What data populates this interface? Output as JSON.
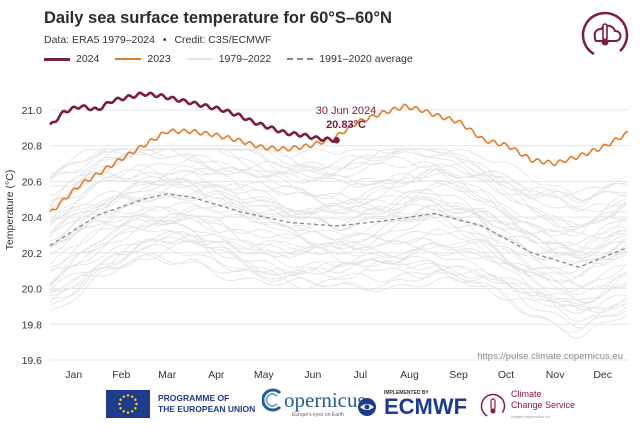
{
  "title": "Daily sea surface temperature for 60°S–60°N",
  "subtitle": {
    "data": "Data: ERA5 1979–2024",
    "bullet": "•",
    "credit": "Credit: C3S/ECMWF"
  },
  "legend": [
    {
      "label": "2024",
      "color": "#7b1f3a",
      "style": "solid-thick"
    },
    {
      "label": "2023",
      "color": "#e07b2a",
      "style": "solid"
    },
    {
      "label": "1979–2022",
      "color": "#e3e3e3",
      "style": "solid"
    },
    {
      "label": "1991–2020 average",
      "color": "#888888",
      "style": "dashed"
    }
  ],
  "source_url": "https://pulse.climate.copernicus.eu",
  "annotation": {
    "date": "30 Jun 2024",
    "value": "20.83°C"
  },
  "footer": {
    "eu_line1": "PROGRAMME OF",
    "eu_line2": "THE EUROPEAN UNION",
    "copernicus": "opernicus",
    "copernicus_tag": "Europe's eyes on Earth",
    "ecmwf_impl": "IMPLEMENTED BY",
    "ecmwf": "ECMWF",
    "c3s_line1": "Climate",
    "c3s_line2": "Change Service",
    "c3s_sub": "climate.copernicus.eu"
  },
  "chart_data": {
    "type": "line",
    "title": "Daily sea surface temperature for 60°S–60°N",
    "ylabel": "Temperature (°C)",
    "xlabel": "",
    "ylim": [
      19.6,
      21.1
    ],
    "yticks": [
      19.6,
      19.8,
      20.0,
      20.2,
      20.4,
      20.6,
      20.8,
      21.0
    ],
    "ytick_labels": [
      "19.6",
      "19.8",
      "20.0",
      "20.2",
      "20.4",
      "20.6",
      "20.8",
      "21.0"
    ],
    "x_unit": "day of year",
    "xlim": [
      1,
      366
    ],
    "months": [
      {
        "label": "Jan",
        "mid_day": 16
      },
      {
        "label": "Feb",
        "mid_day": 46
      },
      {
        "label": "Mar",
        "mid_day": 75
      },
      {
        "label": "Apr",
        "mid_day": 106
      },
      {
        "label": "May",
        "mid_day": 136
      },
      {
        "label": "Jun",
        "mid_day": 167
      },
      {
        "label": "Jul",
        "mid_day": 197
      },
      {
        "label": "Aug",
        "mid_day": 228
      },
      {
        "label": "Sep",
        "mid_day": 259
      },
      {
        "label": "Oct",
        "mid_day": 289
      },
      {
        "label": "Nov",
        "mid_day": 320
      },
      {
        "label": "Dec",
        "mid_day": 350
      }
    ],
    "grid": true,
    "series": [
      {
        "name": "2024",
        "color": "#7b1f3a",
        "x": [
          1,
          10,
          20,
          31,
          40,
          50,
          60,
          70,
          80,
          90,
          100,
          110,
          120,
          130,
          140,
          150,
          160,
          170,
          182
        ],
        "y": [
          20.91,
          20.99,
          21.02,
          21.0,
          21.05,
          21.07,
          21.09,
          21.08,
          21.06,
          21.04,
          21.02,
          21.0,
          20.97,
          20.93,
          20.9,
          20.87,
          20.86,
          20.84,
          20.83
        ]
      },
      {
        "name": "2023",
        "color": "#e07b2a",
        "x": [
          1,
          10,
          20,
          31,
          45,
          60,
          75,
          90,
          105,
          120,
          135,
          150,
          165,
          180,
          195,
          210,
          225,
          235,
          245,
          260,
          275,
          290,
          305,
          320,
          335,
          350,
          366
        ],
        "y": [
          20.42,
          20.5,
          20.58,
          20.64,
          20.72,
          20.8,
          20.88,
          20.88,
          20.86,
          20.83,
          20.79,
          20.78,
          20.8,
          20.84,
          20.93,
          20.98,
          21.02,
          21.0,
          20.97,
          20.93,
          20.83,
          20.8,
          20.72,
          20.7,
          20.74,
          20.79,
          20.87
        ]
      },
      {
        "name": "1991–2020 average",
        "color": "#888888",
        "x": [
          1,
          31,
          60,
          75,
          91,
          121,
          152,
          182,
          213,
          244,
          274,
          305,
          335,
          366
        ],
        "y": [
          20.24,
          20.41,
          20.5,
          20.53,
          20.51,
          20.43,
          20.37,
          20.35,
          20.38,
          20.42,
          20.35,
          20.2,
          20.12,
          20.23
        ]
      }
    ],
    "history_years": [
      1979,
      1980,
      1981,
      1982,
      1983,
      1984,
      1985,
      1986,
      1987,
      1988,
      1989,
      1990,
      1991,
      1992,
      1993,
      1994,
      1995,
      1996,
      1997,
      1998,
      1999,
      2000,
      2001,
      2002,
      2003,
      2004,
      2005,
      2006,
      2007,
      2008,
      2009,
      2010,
      2011,
      2012,
      2013,
      2014,
      2015,
      2016,
      2017,
      2018,
      2019,
      2020,
      2021,
      2022
    ],
    "history_x": [
      1,
      31,
      60,
      91,
      121,
      152,
      182,
      213,
      244,
      274,
      305,
      335,
      366
    ],
    "history_y_shape": [
      20.24,
      20.41,
      20.5,
      20.51,
      20.43,
      20.37,
      20.35,
      20.38,
      20.42,
      20.35,
      20.2,
      20.12,
      20.23
    ],
    "history_offset_range": [
      -0.35,
      0.38
    ]
  }
}
